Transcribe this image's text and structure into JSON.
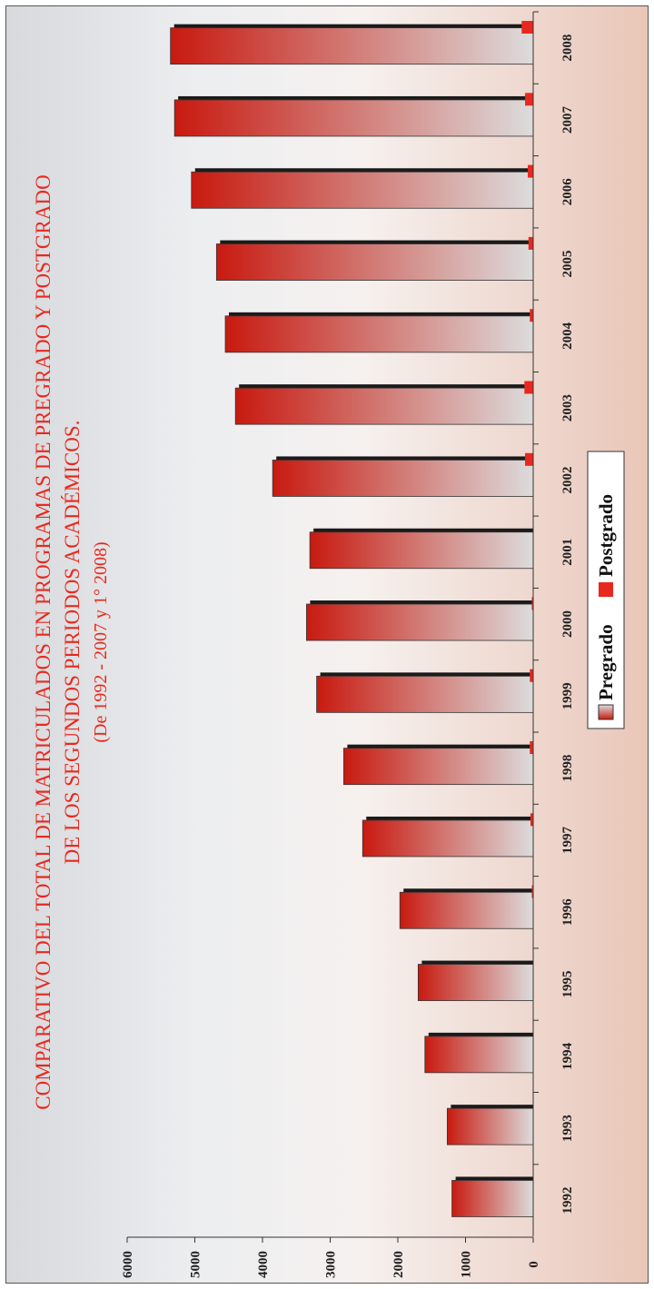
{
  "chart_data": {
    "type": "bar",
    "title_lines": [
      "COMPARATIVO DEL TOTAL DE MATRICULADOS EN PROGRAMAS DE PREGRADO Y POSTGRADO",
      "DE LOS SEGUNDOS PERIODOS ACADÉMICOS.",
      "(De 1992 - 2007 y 1° 2008)"
    ],
    "categories": [
      "1992",
      "1993",
      "1994",
      "1995",
      "1996",
      "1997",
      "1998",
      "1999",
      "2000",
      "2001",
      "2002",
      "2003",
      "2004",
      "2005",
      "2006",
      "2007",
      "2008"
    ],
    "series": [
      {
        "name": "Pregrado",
        "values": [
          1200,
          1270,
          1600,
          1700,
          1970,
          2520,
          2800,
          3200,
          3350,
          3300,
          3850,
          4400,
          4550,
          4680,
          5050,
          5300,
          5360
        ]
      },
      {
        "name": "Postgrado",
        "values": [
          0,
          0,
          0,
          0,
          20,
          40,
          50,
          50,
          20,
          0,
          120,
          130,
          50,
          70,
          80,
          120,
          170
        ]
      }
    ],
    "y_ticks": [
      "0",
      "1000",
      "2000",
      "3000",
      "4000",
      "5000",
      "6000"
    ],
    "ylim": [
      0,
      6000
    ],
    "legend_position": "center",
    "colors": {
      "pregrado_dark": "#c81a10",
      "pregrado_light": "#dcdcdc",
      "postgrado": "#e8281e",
      "title": "#e8281e",
      "bar_shadow": "#1a1a1a"
    }
  }
}
